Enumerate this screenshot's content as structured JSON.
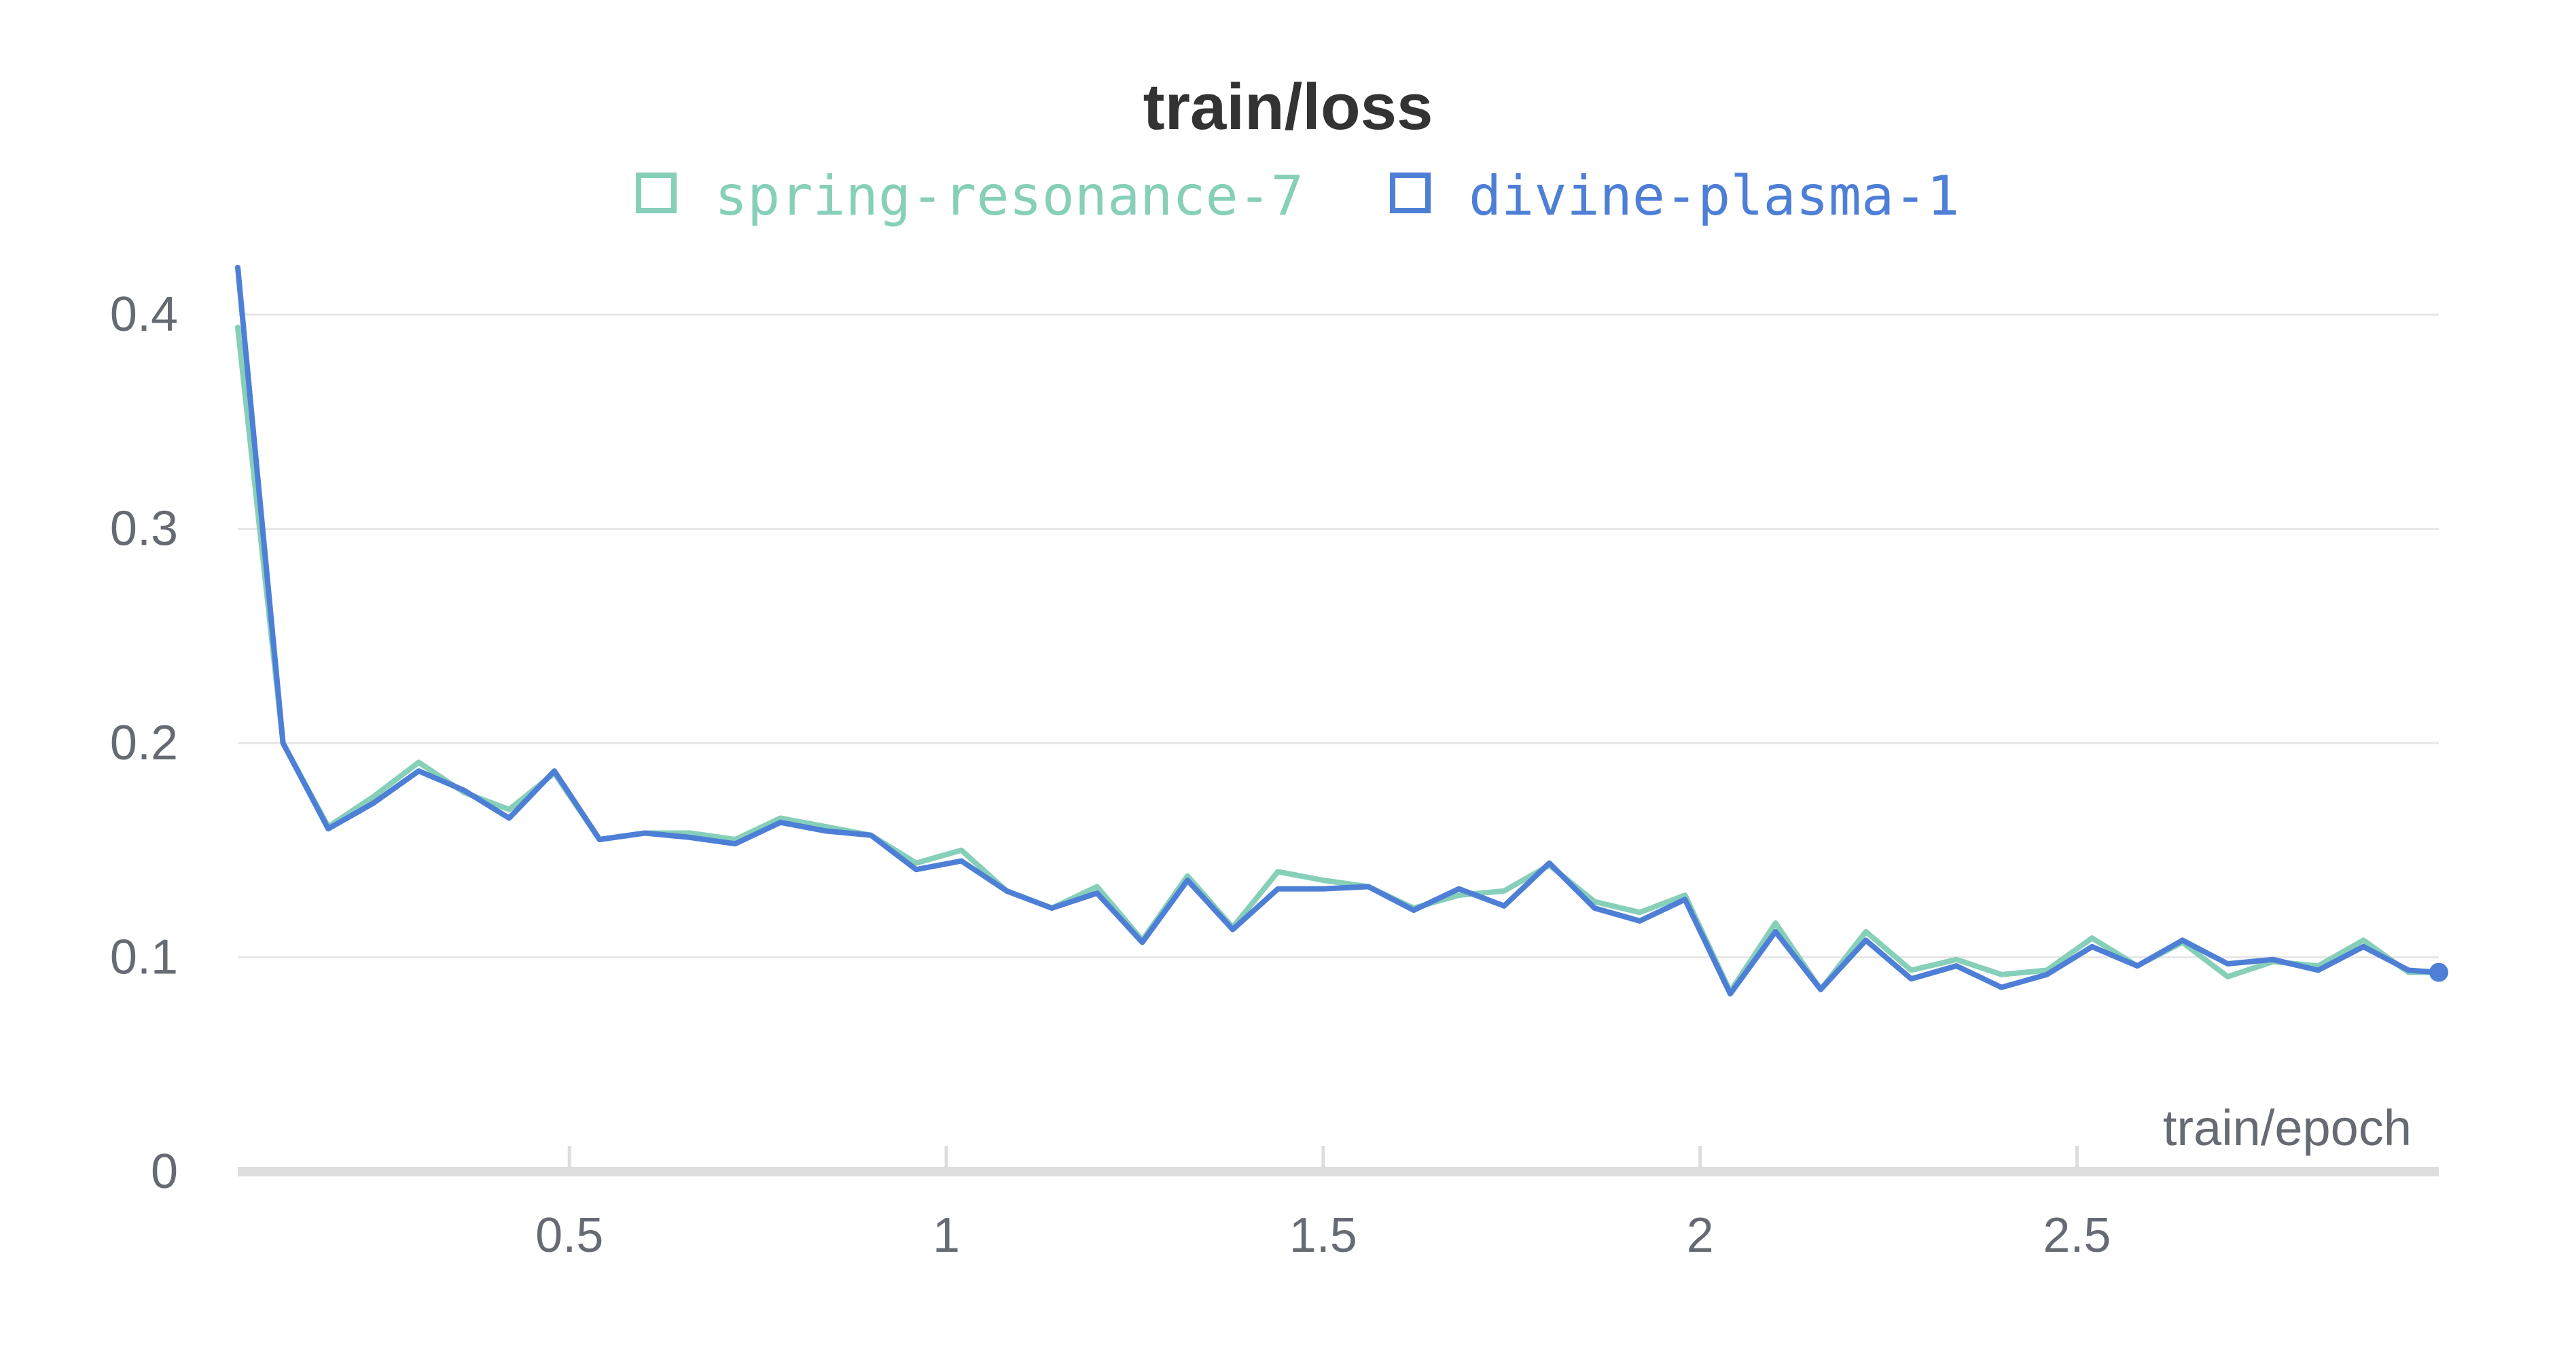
{
  "chart_data": {
    "type": "line",
    "title": "train/loss",
    "xlabel": "train/epoch",
    "ylabel": "",
    "xlim": [
      0.06,
      2.98
    ],
    "ylim": [
      0,
      0.42
    ],
    "x_ticks": [
      0.5,
      1,
      1.5,
      2,
      2.5
    ],
    "x_tick_labels": [
      "0.5",
      "1",
      "1.5",
      "2",
      "2.5"
    ],
    "y_ticks": [
      0,
      0.1,
      0.2,
      0.3,
      0.4
    ],
    "y_tick_labels": [
      "0",
      "0.1",
      "0.2",
      "0.3",
      "0.4"
    ],
    "grid": true,
    "legend": "top-center",
    "x": [
      0.06,
      0.12,
      0.18,
      0.24,
      0.3,
      0.36,
      0.42,
      0.48,
      0.54,
      0.6,
      0.66,
      0.72,
      0.78,
      0.84,
      0.9,
      0.96,
      1.02,
      1.08,
      1.14,
      1.2,
      1.26,
      1.32,
      1.38,
      1.44,
      1.5,
      1.56,
      1.62,
      1.68,
      1.74,
      1.8,
      1.86,
      1.92,
      1.98,
      2.04,
      2.1,
      2.16,
      2.22,
      2.28,
      2.34,
      2.4,
      2.46,
      2.52,
      2.58,
      2.64,
      2.7,
      2.76,
      2.82,
      2.88,
      2.94,
      2.98
    ],
    "series": [
      {
        "name": "spring-resonance-7",
        "color": "#86cfb8",
        "values": [
          0.394,
          0.2,
          0.161,
          0.175,
          0.191,
          0.177,
          0.169,
          0.186,
          0.155,
          0.158,
          0.158,
          0.155,
          0.165,
          0.161,
          0.157,
          0.144,
          0.15,
          0.131,
          0.123,
          0.133,
          0.108,
          0.138,
          0.114,
          0.14,
          0.136,
          0.133,
          0.123,
          0.129,
          0.131,
          0.143,
          0.126,
          0.121,
          0.129,
          0.084,
          0.116,
          0.085,
          0.112,
          0.094,
          0.099,
          0.092,
          0.094,
          0.109,
          0.096,
          0.107,
          0.091,
          0.098,
          0.096,
          0.108,
          0.093,
          0.093
        ]
      },
      {
        "name": "divine-plasma-1",
        "color": "#4e7fd6",
        "values": [
          0.422,
          0.2,
          0.16,
          0.172,
          0.187,
          0.178,
          0.165,
          0.187,
          0.155,
          0.158,
          0.156,
          0.153,
          0.163,
          0.159,
          0.157,
          0.141,
          0.145,
          0.131,
          0.123,
          0.13,
          0.107,
          0.136,
          0.113,
          0.132,
          0.132,
          0.133,
          0.122,
          0.132,
          0.124,
          0.144,
          0.123,
          0.117,
          0.127,
          0.083,
          0.112,
          0.085,
          0.108,
          0.09,
          0.096,
          0.086,
          0.092,
          0.105,
          0.096,
          0.108,
          0.097,
          0.099,
          0.094,
          0.105,
          0.094,
          0.093
        ]
      }
    ]
  }
}
